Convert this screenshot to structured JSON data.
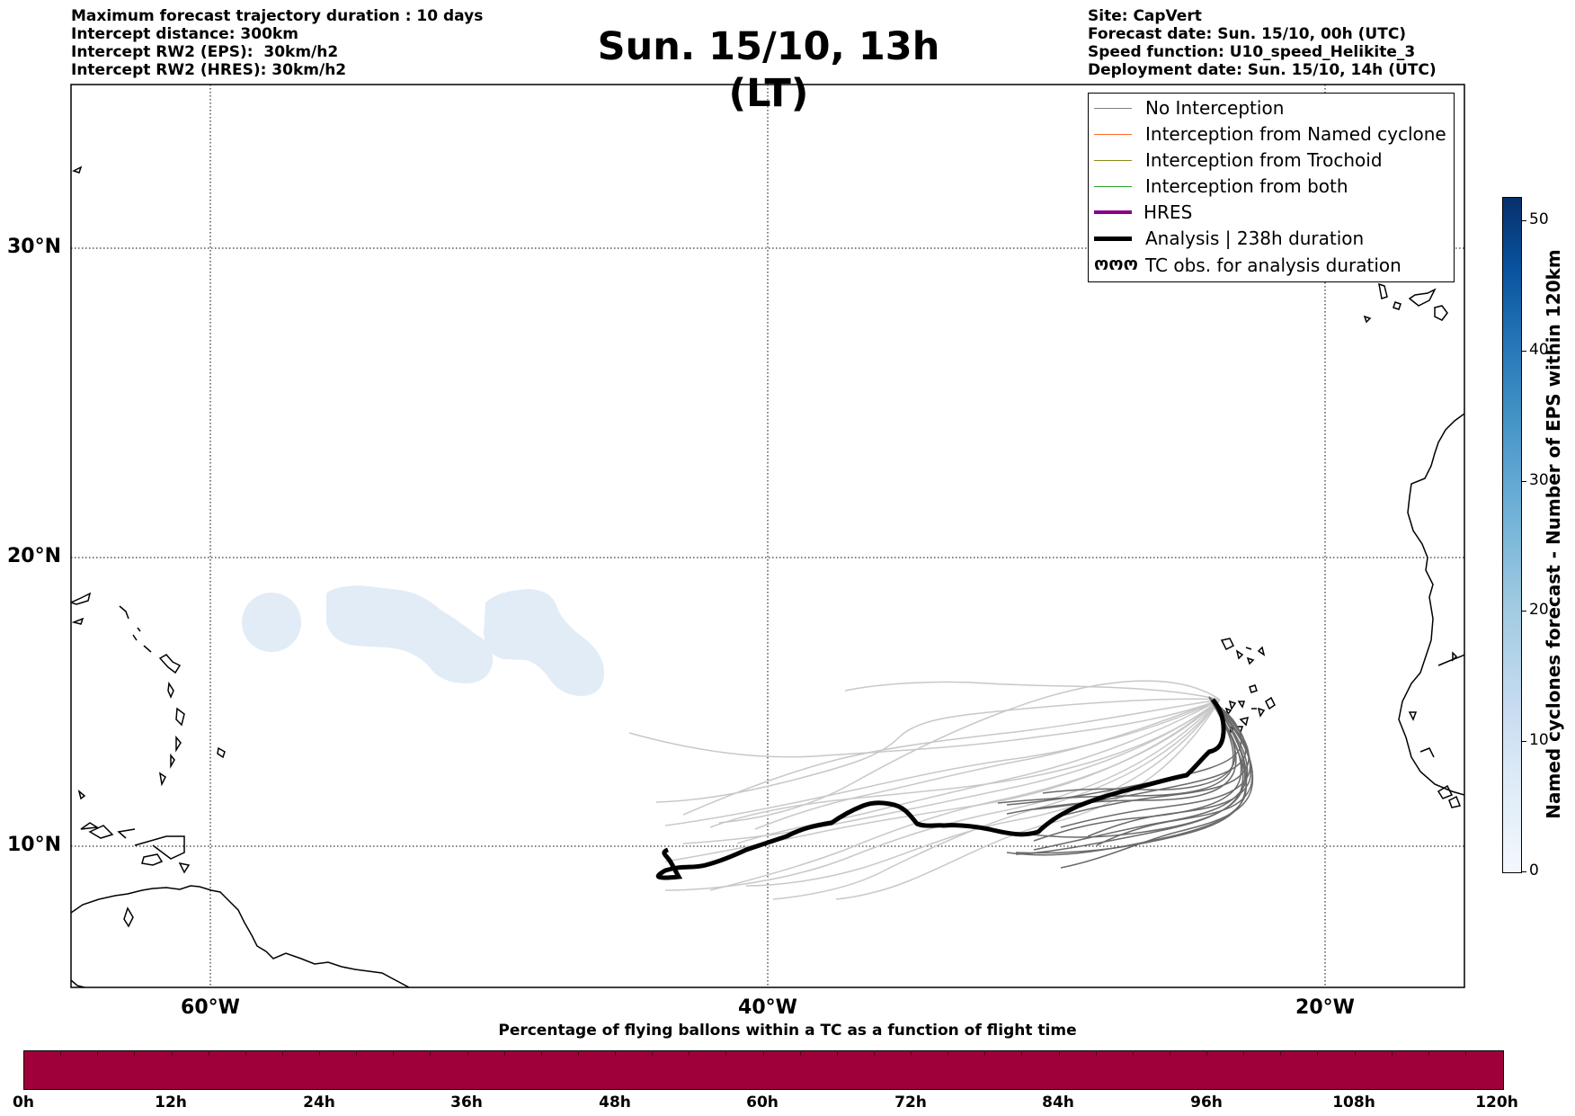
{
  "header_left": [
    "Maximum forecast trajectory duration : 10 days",
    "Intercept distance: 300km",
    "Intercept RW2 (EPS):  30km/h2",
    "Intercept RW2 (HRES): 30km/h2"
  ],
  "title": "Sun. 15/10, 13h (LT)",
  "header_right": [
    "Site: CapVert",
    "Forecast date: Sun. 15/10, 00h (UTC)",
    "Speed function: U10_speed_Helikite_3",
    "Deployment date: Sun. 15/10, 14h (UTC)"
  ],
  "lat_labels": [
    "30°N",
    "20°N",
    "10°N"
  ],
  "lon_labels": [
    "60°W",
    "40°W",
    "20°W"
  ],
  "legend": [
    {
      "label": "No Interception",
      "color": "#808080",
      "width": 1.5
    },
    {
      "label": "Interception from Named cyclone",
      "color": "#ff6a2a",
      "width": 1.5
    },
    {
      "label": "Interception from Trochoid",
      "color": "#8b8b1a",
      "width": 1.5
    },
    {
      "label": "Interception from both",
      "color": "#2ca02c",
      "width": 1.5
    },
    {
      "label": "HRES",
      "color": "#8b008b",
      "width": 4
    },
    {
      "label": "Analysis | 238h duration",
      "color": "#000000",
      "width": 5
    },
    {
      "label": "TC obs. for analysis duration",
      "color": "#000000",
      "symbol": "ოოო"
    }
  ],
  "colorbar_right": {
    "label": "Named cyclones forecast - Number of EPS within 120km",
    "ticks": [
      "0",
      "10",
      "20",
      "30",
      "40",
      "50"
    ]
  },
  "bottom_title": "Percentage of flying ballons within a TC as a function of flight time",
  "bottom_ticks": [
    "0h",
    "12h",
    "24h",
    "36h",
    "48h",
    "60h",
    "72h",
    "84h",
    "96h",
    "108h",
    "120h"
  ],
  "colors": {
    "bottom_bar": "#a0003a",
    "cyclone_blob": "#e1ecf7"
  }
}
